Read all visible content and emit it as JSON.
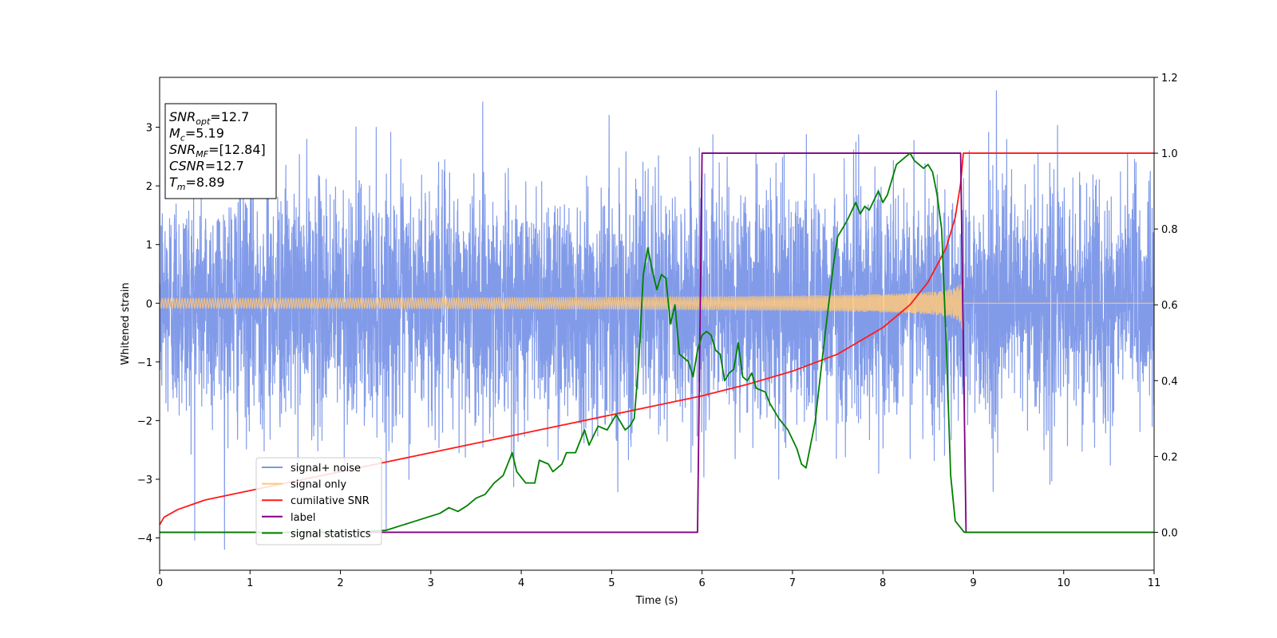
{
  "chart_data": {
    "type": "line",
    "xlabel": "Time (s)",
    "ylabel": "Whitened strain",
    "xlim": [
      0,
      11
    ],
    "ylim": [
      -4.55,
      3.85
    ],
    "y2lim": [
      -0.1,
      1.2
    ],
    "grid": false,
    "legend_position": "lower-left",
    "x_ticks": [
      0,
      1,
      2,
      3,
      4,
      5,
      6,
      7,
      8,
      9,
      10,
      11
    ],
    "y_ticks": [
      -4,
      -3,
      -2,
      -1,
      0,
      1,
      2,
      3
    ],
    "y2_ticks": [
      0.0,
      0.2,
      0.4,
      0.6,
      0.8,
      1.0,
      1.2
    ],
    "info_box": {
      "lines": [
        {
          "main": "SNR",
          "sub": "opt",
          "rest": "=12.7"
        },
        {
          "main": "M",
          "sub": "c",
          "rest": "=5.19"
        },
        {
          "main": "SNR",
          "sub": "MF",
          "rest": "=[12.84]"
        },
        {
          "main": "CSNR",
          "sub": "",
          "rest": "=12.7"
        },
        {
          "main": "T",
          "sub": "m",
          "rest": "=8.89"
        }
      ]
    },
    "series": [
      {
        "name": "signal+ noise",
        "color": "#7b96e8",
        "axis": "left",
        "kind": "noise",
        "sigma": 1.0,
        "x_range": [
          0,
          11
        ]
      },
      {
        "name": "signal only",
        "color": "#ffc87a",
        "axis": "left",
        "kind": "chirp",
        "amplitude_start": 0.1,
        "amplitude_end": 0.7,
        "merge_time": 8.89
      },
      {
        "name": "cumilative SNR",
        "color": "#ff1a1a",
        "axis": "right",
        "x": [
          0.0,
          0.05,
          0.2,
          0.5,
          1.0,
          1.5,
          2.0,
          2.5,
          3.0,
          3.5,
          4.0,
          4.5,
          5.0,
          5.5,
          6.0,
          6.5,
          7.0,
          7.5,
          8.0,
          8.3,
          8.5,
          8.7,
          8.8,
          8.86,
          8.89,
          11.0
        ],
        "y": [
          0.02,
          0.04,
          0.06,
          0.085,
          0.11,
          0.135,
          0.16,
          0.185,
          0.21,
          0.235,
          0.26,
          0.285,
          0.31,
          0.335,
          0.36,
          0.39,
          0.425,
          0.47,
          0.54,
          0.6,
          0.66,
          0.75,
          0.83,
          0.92,
          1.0,
          1.0
        ]
      },
      {
        "name": "label",
        "color": "#800080",
        "axis": "right",
        "x": [
          0.0,
          5.95,
          6.0,
          8.86,
          8.92,
          11.0
        ],
        "y": [
          0.0,
          0.0,
          1.0,
          1.0,
          0.0,
          0.0
        ]
      },
      {
        "name": "signal statistics",
        "color": "#008000",
        "axis": "right",
        "x": [
          0.0,
          2.0,
          2.5,
          2.7,
          2.9,
          3.1,
          3.2,
          3.25,
          3.3,
          3.4,
          3.5,
          3.6,
          3.7,
          3.8,
          3.9,
          3.95,
          4.05,
          4.15,
          4.2,
          4.3,
          4.35,
          4.45,
          4.5,
          4.6,
          4.7,
          4.75,
          4.85,
          4.95,
          5.05,
          5.15,
          5.2,
          5.25,
          5.3,
          5.35,
          5.4,
          5.45,
          5.5,
          5.55,
          5.6,
          5.65,
          5.7,
          5.75,
          5.85,
          5.9,
          5.95,
          6.0,
          6.05,
          6.1,
          6.15,
          6.2,
          6.25,
          6.3,
          6.35,
          6.4,
          6.45,
          6.5,
          6.55,
          6.6,
          6.7,
          6.75,
          6.85,
          6.95,
          7.05,
          7.1,
          7.15,
          7.25,
          7.35,
          7.45,
          7.5,
          7.6,
          7.7,
          7.75,
          7.8,
          7.85,
          7.95,
          8.0,
          8.05,
          8.15,
          8.2,
          8.3,
          8.35,
          8.45,
          8.5,
          8.55,
          8.6,
          8.65,
          8.7,
          8.75,
          8.8,
          8.9,
          11.0
        ],
        "y": [
          0.0,
          0.0,
          0.005,
          0.02,
          0.035,
          0.05,
          0.065,
          0.06,
          0.055,
          0.07,
          0.09,
          0.1,
          0.13,
          0.15,
          0.21,
          0.16,
          0.13,
          0.13,
          0.19,
          0.18,
          0.16,
          0.18,
          0.21,
          0.21,
          0.27,
          0.23,
          0.28,
          0.27,
          0.31,
          0.27,
          0.28,
          0.3,
          0.45,
          0.68,
          0.75,
          0.69,
          0.64,
          0.68,
          0.67,
          0.55,
          0.6,
          0.47,
          0.45,
          0.41,
          0.48,
          0.52,
          0.53,
          0.52,
          0.48,
          0.47,
          0.4,
          0.42,
          0.43,
          0.5,
          0.41,
          0.4,
          0.42,
          0.38,
          0.37,
          0.34,
          0.3,
          0.27,
          0.22,
          0.18,
          0.17,
          0.29,
          0.5,
          0.7,
          0.78,
          0.82,
          0.87,
          0.84,
          0.86,
          0.85,
          0.9,
          0.87,
          0.89,
          0.97,
          0.98,
          1.0,
          0.98,
          0.96,
          0.97,
          0.95,
          0.89,
          0.8,
          0.5,
          0.15,
          0.03,
          0.0,
          0.0
        ]
      }
    ]
  }
}
